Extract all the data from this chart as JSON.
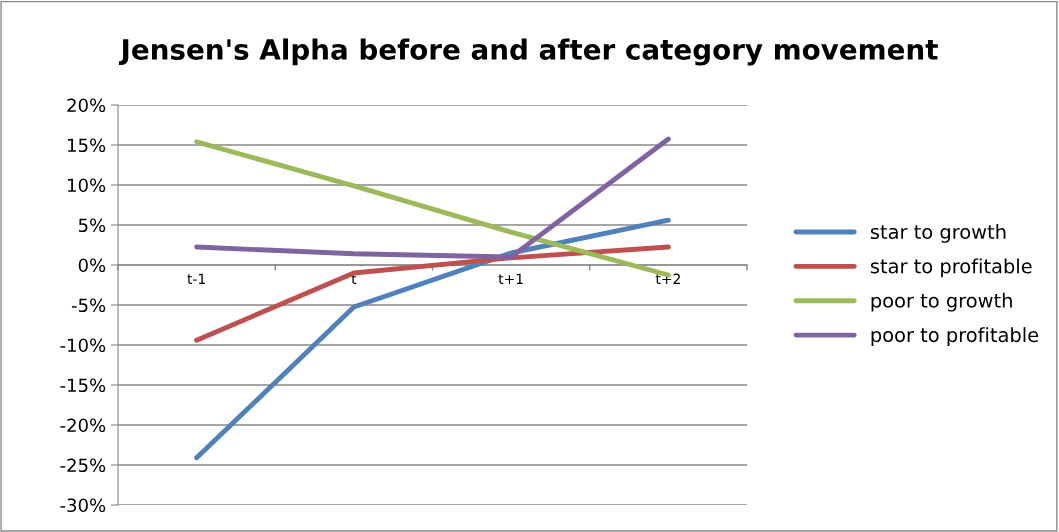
{
  "chart_data": {
    "type": "line",
    "title": "Jensen's Alpha before and after category movement",
    "categories": [
      "t-1",
      "t",
      "t+1",
      "t+2"
    ],
    "series": [
      {
        "name": "star to growth",
        "color": "#4f81bd",
        "values": [
          -24.1,
          -5.25,
          1.5,
          5.6
        ]
      },
      {
        "name": "star to profitable",
        "color": "#c0504d",
        "values": [
          -9.4,
          -1.0,
          0.9,
          2.25
        ]
      },
      {
        "name": "poor to growth",
        "color": "#9bbb59",
        "values": [
          15.4,
          9.9,
          4.1,
          -1.25
        ]
      },
      {
        "name": "poor to profitable",
        "color": "#8064a2",
        "values": [
          2.25,
          1.4,
          1.0,
          15.75
        ]
      }
    ],
    "ylim": [
      -30,
      20
    ],
    "yticks": [
      {
        "value": -30,
        "label": "-30%"
      },
      {
        "value": -25,
        "label": "-25%"
      },
      {
        "value": -20,
        "label": "-20%"
      },
      {
        "value": -15,
        "label": "-15%"
      },
      {
        "value": -10,
        "label": "-10%"
      },
      {
        "value": -5,
        "label": "-5%"
      },
      {
        "value": 0,
        "label": "0%"
      },
      {
        "value": 5,
        "label": "5%"
      },
      {
        "value": 10,
        "label": "10%"
      },
      {
        "value": 15,
        "label": "15%"
      },
      {
        "value": 20,
        "label": "20%"
      }
    ],
    "grid": "y",
    "legend": "right",
    "marker": "none",
    "line_style": "solid"
  }
}
